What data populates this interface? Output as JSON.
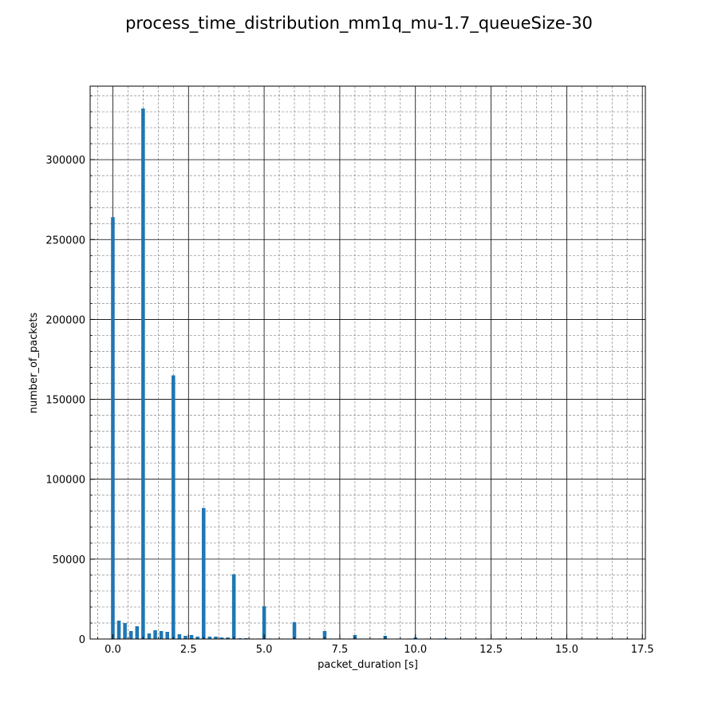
{
  "chart_data": {
    "type": "bar",
    "title": "process_time_distribution_mm1q_mu-1.7_queueSize-30",
    "xlabel": "packet_duration [s]",
    "ylabel": "number_of_packets",
    "xlim": [
      -0.75,
      17.6
    ],
    "ylim": [
      0,
      346000
    ],
    "x_major_ticks": [
      0.0,
      2.5,
      5.0,
      7.5,
      10.0,
      12.5,
      15.0,
      17.5
    ],
    "x_tick_labels": [
      "0.0",
      "2.5",
      "5.0",
      "7.5",
      "10.0",
      "12.5",
      "15.0",
      "17.5"
    ],
    "x_minor_step": 0.5,
    "y_major_ticks": [
      0,
      50000,
      100000,
      150000,
      200000,
      250000,
      300000
    ],
    "y_tick_labels": [
      "0",
      "50000",
      "100000",
      "150000",
      "200000",
      "250000",
      "300000"
    ],
    "y_minor_step": 10000,
    "grid": true,
    "legend": false,
    "bar_color": "#1f77b4",
    "bar_width": 0.12,
    "x": [
      0.0,
      0.2,
      0.4,
      0.6,
      0.8,
      1.0,
      1.2,
      1.4,
      1.6,
      1.8,
      2.0,
      2.2,
      2.4,
      2.6,
      2.8,
      3.0,
      3.2,
      3.4,
      3.6,
      3.8,
      4.0,
      4.2,
      4.4,
      4.6,
      4.8,
      5.0,
      5.2,
      5.4,
      5.6,
      5.8,
      6.0,
      6.2,
      6.4,
      6.6,
      6.8,
      7.0,
      7.2,
      7.4,
      7.6,
      7.8,
      8.0,
      8.2,
      8.4,
      8.6,
      8.8,
      9.0,
      9.4,
      9.8,
      10.0,
      10.4,
      10.8,
      11.0,
      11.4,
      11.8,
      12.0,
      12.4,
      12.8,
      13.0,
      13.4,
      13.8,
      14.0,
      14.4,
      14.8,
      15.0,
      15.4,
      15.8,
      16.0,
      16.4,
      16.8,
      17.0
    ],
    "values": [
      264000,
      11500,
      10000,
      5000,
      8000,
      332000,
      3500,
      5500,
      5000,
      4500,
      165000,
      3000,
      2000,
      2500,
      1500,
      82000,
      1500,
      1500,
      1000,
      1000,
      40500,
      500,
      500,
      300,
      300,
      20500,
      300,
      200,
      200,
      150,
      10500,
      150,
      100,
      100,
      100,
      5000,
      100,
      80,
      80,
      80,
      2500,
      60,
      60,
      60,
      60,
      2000,
      50,
      50,
      1000,
      40,
      40,
      500,
      30,
      30,
      300,
      20,
      20,
      200,
      20,
      20,
      150,
      10,
      10,
      100,
      10,
      10,
      80,
      10,
      10,
      50
    ]
  }
}
